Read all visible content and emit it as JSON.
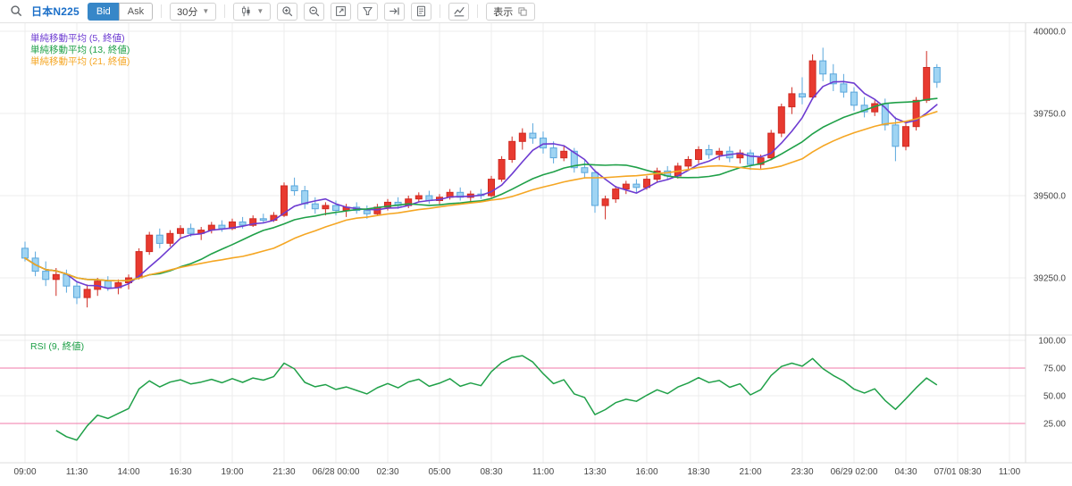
{
  "toolbar": {
    "symbol": "日本N225",
    "bid_label": "Bid",
    "ask_label": "Ask",
    "timeframe_value": "30分",
    "display_label": "表示",
    "icon_names": [
      "search-icon",
      "candlestick-type-icon",
      "chevron-down-icon",
      "zoom-in-icon",
      "zoom-out-icon",
      "fullscreen-icon",
      "filter-icon",
      "go-to-latest-icon",
      "document-icon",
      "indicator-icon",
      "layers-icon"
    ]
  },
  "legend": {
    "sma5": {
      "label": "単純移動平均 (5, 終値)",
      "color": "#6d3bd1"
    },
    "sma13": {
      "label": "単純移動平均 (13, 終値)",
      "color": "#1fa048"
    },
    "sma21": {
      "label": "単純移動平均 (21, 終値)",
      "color": "#f5a623"
    }
  },
  "rsi_legend": {
    "label": "RSI (9, 終値)",
    "color": "#1fa048"
  },
  "chart_data": {
    "type": "candlestick",
    "instrument": "日本N225",
    "interval": "30分",
    "price_axis_labels": [
      40000.0,
      39750.0,
      39500.0,
      39250.0
    ],
    "rsi_axis_labels": [
      100,
      75,
      50,
      25
    ],
    "x_labels": [
      "09:00",
      "11:30",
      "14:00",
      "16:30",
      "19:00",
      "21:30",
      "06/28 00:00",
      "02:30",
      "05:00",
      "08:30",
      "11:00",
      "13:30",
      "16:00",
      "18:30",
      "21:00",
      "23:30",
      "06/29 02:00",
      "04:30",
      "07/01 08:30",
      "11:00"
    ],
    "candles_ohlc": [
      [
        39340,
        39360,
        39300,
        39310
      ],
      [
        39310,
        39330,
        39255,
        39270
      ],
      [
        39270,
        39300,
        39225,
        39245
      ],
      [
        39245,
        39280,
        39195,
        39260
      ],
      [
        39260,
        39275,
        39205,
        39225
      ],
      [
        39225,
        39240,
        39170,
        39190
      ],
      [
        39190,
        39230,
        39160,
        39215
      ],
      [
        39215,
        39250,
        39195,
        39240
      ],
      [
        39240,
        39255,
        39210,
        39220
      ],
      [
        39220,
        39245,
        39200,
        39235
      ],
      [
        39235,
        39260,
        39215,
        39250
      ],
      [
        39250,
        39340,
        39245,
        39330
      ],
      [
        39330,
        39390,
        39320,
        39380
      ],
      [
        39380,
        39400,
        39340,
        39355
      ],
      [
        39355,
        39395,
        39345,
        39385
      ],
      [
        39385,
        39410,
        39370,
        39400
      ],
      [
        39400,
        39415,
        39375,
        39385
      ],
      [
        39385,
        39405,
        39365,
        39395
      ],
      [
        39395,
        39420,
        39385,
        39410
      ],
      [
        39410,
        39425,
        39390,
        39400
      ],
      [
        39400,
        39430,
        39395,
        39420
      ],
      [
        39420,
        39435,
        39400,
        39410
      ],
      [
        39410,
        39440,
        39405,
        39430
      ],
      [
        39430,
        39445,
        39415,
        39425
      ],
      [
        39425,
        39450,
        39420,
        39440
      ],
      [
        39440,
        39540,
        39435,
        39530
      ],
      [
        39530,
        39555,
        39500,
        39515
      ],
      [
        39515,
        39530,
        39460,
        39475
      ],
      [
        39475,
        39495,
        39445,
        39460
      ],
      [
        39460,
        39480,
        39440,
        39470
      ],
      [
        39470,
        39485,
        39440,
        39455
      ],
      [
        39455,
        39475,
        39435,
        39465
      ],
      [
        39465,
        39480,
        39445,
        39455
      ],
      [
        39455,
        39470,
        39430,
        39445
      ],
      [
        39445,
        39475,
        39438,
        39465
      ],
      [
        39465,
        39490,
        39455,
        39480
      ],
      [
        39480,
        39495,
        39460,
        39470
      ],
      [
        39470,
        39500,
        39462,
        39490
      ],
      [
        39490,
        39510,
        39480,
        39500
      ],
      [
        39500,
        39515,
        39475,
        39485
      ],
      [
        39485,
        39505,
        39470,
        39495
      ],
      [
        39495,
        39520,
        39488,
        39510
      ],
      [
        39510,
        39525,
        39485,
        39495
      ],
      [
        39495,
        39515,
        39480,
        39505
      ],
      [
        39505,
        39520,
        39490,
        39500
      ],
      [
        39500,
        39560,
        39495,
        39550
      ],
      [
        39550,
        39620,
        39542,
        39610
      ],
      [
        39610,
        39680,
        39600,
        39665
      ],
      [
        39665,
        39705,
        39640,
        39690
      ],
      [
        39690,
        39720,
        39658,
        39675
      ],
      [
        39675,
        39695,
        39628,
        39645
      ],
      [
        39645,
        39665,
        39598,
        39615
      ],
      [
        39615,
        39650,
        39605,
        39635
      ],
      [
        39635,
        39645,
        39570,
        39585
      ],
      [
        39585,
        39610,
        39552,
        39570
      ],
      [
        39570,
        39580,
        39448,
        39470
      ],
      [
        39470,
        39500,
        39428,
        39490
      ],
      [
        39490,
        39530,
        39478,
        39520
      ],
      [
        39520,
        39545,
        39505,
        39535
      ],
      [
        39535,
        39550,
        39508,
        39525
      ],
      [
        39525,
        39560,
        39518,
        39550
      ],
      [
        39550,
        39585,
        39540,
        39575
      ],
      [
        39575,
        39590,
        39548,
        39560
      ],
      [
        39560,
        39600,
        39552,
        39590
      ],
      [
        39590,
        39620,
        39578,
        39610
      ],
      [
        39610,
        39650,
        39598,
        39640
      ],
      [
        39640,
        39655,
        39612,
        39625
      ],
      [
        39625,
        39645,
        39608,
        39635
      ],
      [
        39635,
        39650,
        39602,
        39615
      ],
      [
        39615,
        39640,
        39598,
        39630
      ],
      [
        39630,
        39640,
        39578,
        39595
      ],
      [
        39595,
        39625,
        39582,
        39615
      ],
      [
        39615,
        39700,
        39608,
        39690
      ],
      [
        39690,
        39780,
        39678,
        39770
      ],
      [
        39770,
        39830,
        39748,
        39810
      ],
      [
        39810,
        39860,
        39778,
        39800
      ],
      [
        39800,
        39930,
        39792,
        39910
      ],
      [
        39910,
        39950,
        39848,
        39870
      ],
      [
        39870,
        39900,
        39818,
        39840
      ],
      [
        39840,
        39870,
        39798,
        39815
      ],
      [
        39815,
        39830,
        39758,
        39775
      ],
      [
        39775,
        39800,
        39738,
        39755
      ],
      [
        39755,
        39790,
        39742,
        39780
      ],
      [
        39780,
        39795,
        39698,
        39715
      ],
      [
        39715,
        39740,
        39605,
        39650
      ],
      [
        39650,
        39720,
        39638,
        39710
      ],
      [
        39710,
        39800,
        39698,
        39790
      ],
      [
        39790,
        39940,
        39782,
        39890
      ],
      [
        39890,
        39900,
        39828,
        39845
      ]
    ],
    "indicators": {
      "sma": [
        {
          "period": 5,
          "color": "#6d3bd1"
        },
        {
          "period": 13,
          "color": "#1fa048"
        },
        {
          "period": 21,
          "color": "#f5a623"
        }
      ],
      "rsi": {
        "period": 9,
        "color": "#1fa048",
        "bands": [
          75,
          25
        ],
        "band_color": "#f078a8"
      }
    },
    "colors": {
      "up": "#e83a30",
      "up_border": "#cf2b22",
      "down": "#9fd4f3",
      "down_border": "#5aa7dc",
      "grid": "#ececec",
      "separator": "#dcdcdc",
      "axis_text": "#444444"
    }
  }
}
